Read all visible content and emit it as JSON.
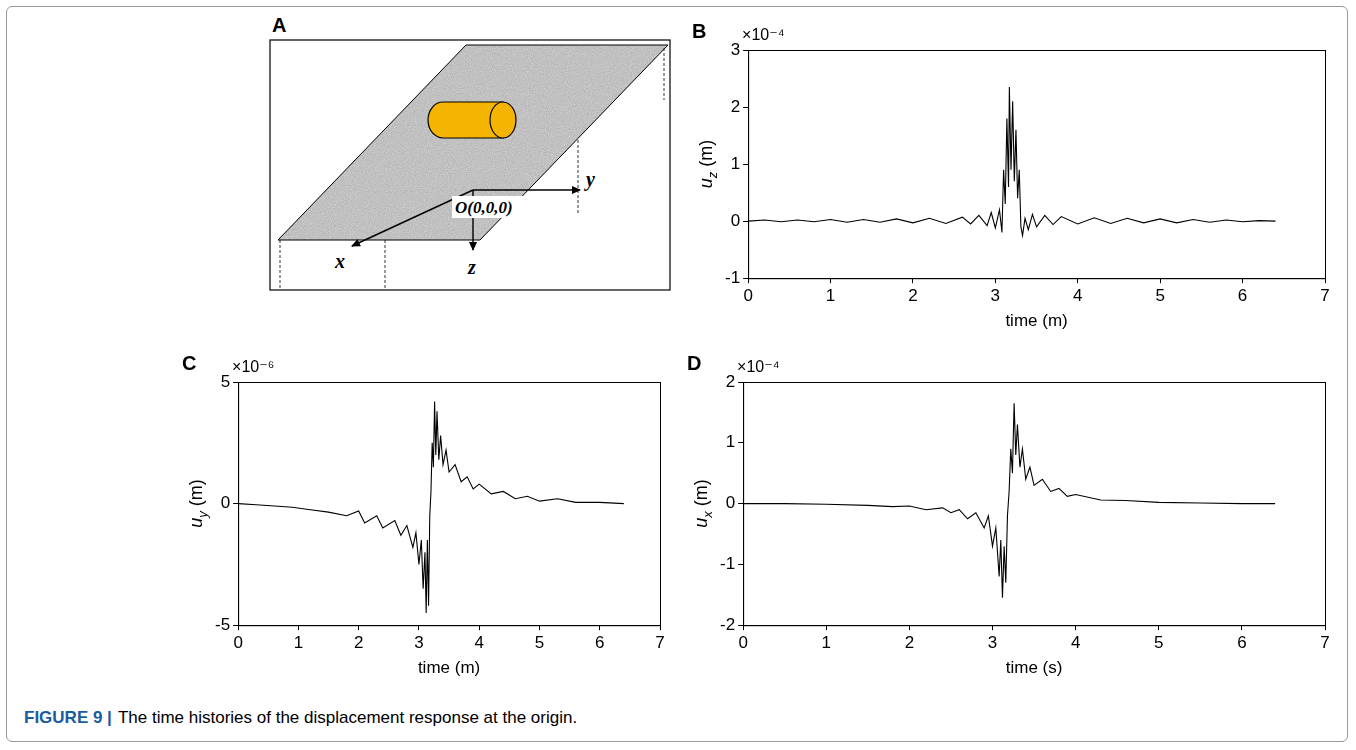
{
  "caption": {
    "label": "FIGURE 9 |",
    "text": "The time histories of the displacement response at the origin."
  },
  "diagram": {
    "letter": "A",
    "origin_label": "O(0,0,0)",
    "axis_labels": {
      "x": "x",
      "y": "y",
      "z": "z"
    }
  },
  "chart_data": [
    {
      "letter": "B",
      "type": "line",
      "xlabel": "time (m)",
      "ylabel": {
        "symbol": "u",
        "subscript": "z",
        "unit": "(m)"
      },
      "scale_label": "×10⁻⁴",
      "xlim": [
        0,
        7
      ],
      "xticks": [
        0,
        1,
        2,
        3,
        4,
        5,
        6,
        7
      ],
      "ylim": [
        -1,
        3
      ],
      "yticks": [
        -1,
        0,
        1,
        2,
        3
      ],
      "grid": false,
      "color": "#000000",
      "x": [
        0,
        0.2,
        0.4,
        0.6,
        0.8,
        1.0,
        1.2,
        1.4,
        1.6,
        1.8,
        2.0,
        2.2,
        2.4,
        2.6,
        2.7,
        2.8,
        2.9,
        2.95,
        3.0,
        3.05,
        3.08,
        3.1,
        3.12,
        3.14,
        3.16,
        3.17,
        3.19,
        3.21,
        3.23,
        3.25,
        3.27,
        3.29,
        3.31,
        3.33,
        3.36,
        3.4,
        3.45,
        3.5,
        3.6,
        3.7,
        3.8,
        4.0,
        4.2,
        4.4,
        4.6,
        4.8,
        5.0,
        5.2,
        5.4,
        5.6,
        5.8,
        6.0,
        6.2,
        6.4
      ],
      "values": [
        0,
        0.02,
        -0.01,
        0.02,
        -0.01,
        0.03,
        -0.02,
        0.03,
        -0.02,
        0.04,
        -0.03,
        0.05,
        -0.04,
        0.07,
        -0.05,
        0.1,
        -0.08,
        0.15,
        -0.12,
        0.2,
        -0.2,
        0.9,
        0.3,
        1.8,
        0.6,
        2.35,
        0.9,
        2.1,
        0.7,
        1.6,
        0.4,
        0.9,
        -0.1,
        -0.25,
        0.05,
        -0.15,
        0.12,
        -0.1,
        0.1,
        -0.06,
        0.08,
        -0.05,
        0.06,
        -0.04,
        0.05,
        -0.03,
        0.04,
        -0.03,
        0.03,
        -0.02,
        0.02,
        -0.01,
        0.01,
        0
      ]
    },
    {
      "letter": "C",
      "type": "line",
      "xlabel": "time (m)",
      "ylabel": {
        "symbol": "u",
        "subscript": "y",
        "unit": "(m)"
      },
      "scale_label": "×10⁻⁶",
      "xlim": [
        0,
        7
      ],
      "xticks": [
        0,
        1,
        2,
        3,
        4,
        5,
        6,
        7
      ],
      "ylim": [
        -5,
        5
      ],
      "yticks": [
        -5,
        0,
        5
      ],
      "grid": false,
      "color": "#000000",
      "x": [
        0,
        0.3,
        0.6,
        0.9,
        1.2,
        1.5,
        1.8,
        2.0,
        2.1,
        2.3,
        2.4,
        2.6,
        2.7,
        2.8,
        2.9,
        2.95,
        3.0,
        3.04,
        3.07,
        3.1,
        3.12,
        3.14,
        3.16,
        3.18,
        3.2,
        3.22,
        3.24,
        3.26,
        3.28,
        3.3,
        3.33,
        3.36,
        3.4,
        3.45,
        3.5,
        3.6,
        3.7,
        3.8,
        3.9,
        4.0,
        4.2,
        4.4,
        4.6,
        4.8,
        5.0,
        5.3,
        5.6,
        6.0,
        6.4
      ],
      "values": [
        0,
        -0.05,
        -0.1,
        -0.15,
        -0.25,
        -0.35,
        -0.5,
        -0.3,
        -0.8,
        -0.5,
        -1.0,
        -0.7,
        -1.3,
        -0.9,
        -1.8,
        -1.2,
        -2.5,
        -1.5,
        -3.5,
        -2.0,
        -4.5,
        -1.5,
        -4.2,
        -0.5,
        0.5,
        2.5,
        1.5,
        4.2,
        2.0,
        3.8,
        1.8,
        2.8,
        1.6,
        2.2,
        1.3,
        1.6,
        0.9,
        1.1,
        0.6,
        0.8,
        0.4,
        0.5,
        0.2,
        0.3,
        0.1,
        0.2,
        0.05,
        0.05,
        0
      ]
    },
    {
      "letter": "D",
      "type": "line",
      "xlabel": "time (s)",
      "ylabel": {
        "symbol": "u",
        "subscript": "x",
        "unit": "(m)"
      },
      "scale_label": "×10⁻⁴",
      "xlim": [
        0,
        7
      ],
      "xticks": [
        0,
        1,
        2,
        3,
        4,
        5,
        6,
        7
      ],
      "ylim": [
        -2,
        2
      ],
      "yticks": [
        -2,
        -1,
        0,
        1,
        2
      ],
      "grid": false,
      "color": "#000000",
      "x": [
        0,
        0.5,
        1.0,
        1.5,
        1.8,
        2.0,
        2.2,
        2.4,
        2.5,
        2.6,
        2.7,
        2.8,
        2.9,
        2.95,
        3.0,
        3.04,
        3.08,
        3.1,
        3.12,
        3.14,
        3.16,
        3.18,
        3.2,
        3.22,
        3.24,
        3.26,
        3.28,
        3.3,
        3.33,
        3.36,
        3.4,
        3.45,
        3.5,
        3.6,
        3.7,
        3.8,
        3.9,
        4.0,
        4.3,
        4.6,
        5.0,
        5.5,
        6.0,
        6.4
      ],
      "values": [
        0,
        0,
        -0.01,
        -0.03,
        -0.05,
        -0.04,
        -0.1,
        -0.07,
        -0.15,
        -0.1,
        -0.25,
        -0.15,
        -0.4,
        -0.2,
        -0.7,
        -0.4,
        -1.2,
        -0.6,
        -1.55,
        -0.7,
        -1.3,
        -0.2,
        0.2,
        0.9,
        0.5,
        1.65,
        0.8,
        1.3,
        0.6,
        0.9,
        0.4,
        0.6,
        0.3,
        0.4,
        0.2,
        0.25,
        0.12,
        0.15,
        0.06,
        0.05,
        0.02,
        0.01,
        0,
        0
      ]
    }
  ]
}
